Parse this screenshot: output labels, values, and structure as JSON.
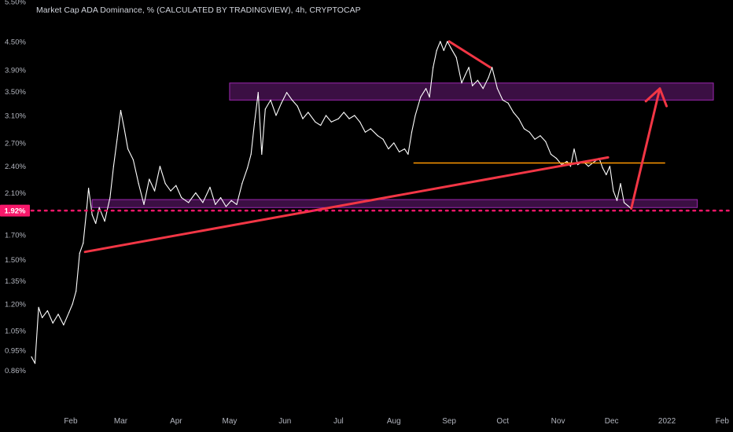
{
  "header": {
    "title": "Market Cap ADA Dominance, % (CALCULATED BY TRADINGVIEW), 4h, CRYPTOCAP"
  },
  "chart_data": {
    "type": "line",
    "title": "Market Cap ADA Dominance, % (CALCULATED BY TRADINGVIEW), 4h, CRYPTOCAP",
    "y_scale": "log",
    "ylim": [
      0.78,
      5.5
    ],
    "y_ticks": [
      {
        "value": 5.5,
        "label": "5.50%"
      },
      {
        "value": 4.5,
        "label": "4.50%"
      },
      {
        "value": 3.9,
        "label": "3.90%"
      },
      {
        "value": 3.5,
        "label": "3.50%"
      },
      {
        "value": 3.1,
        "label": "3.10%"
      },
      {
        "value": 2.7,
        "label": "2.70%"
      },
      {
        "value": 2.4,
        "label": "2.40%"
      },
      {
        "value": 2.1,
        "label": "2.10%"
      },
      {
        "value": 1.7,
        "label": "1.70%"
      },
      {
        "value": 1.5,
        "label": "1.50%"
      },
      {
        "value": 1.35,
        "label": "1.35%"
      },
      {
        "value": 1.2,
        "label": "1.20%"
      },
      {
        "value": 1.05,
        "label": "1.05%"
      },
      {
        "value": 0.95,
        "label": "0.95%"
      },
      {
        "value": 0.86,
        "label": "0.86%"
      }
    ],
    "x_ticks": [
      {
        "date": "2021-02-01",
        "label": "Feb"
      },
      {
        "date": "2021-03-01",
        "label": "Mar"
      },
      {
        "date": "2021-04-01",
        "label": "Apr"
      },
      {
        "date": "2021-05-01",
        "label": "May"
      },
      {
        "date": "2021-06-01",
        "label": "Jun"
      },
      {
        "date": "2021-07-01",
        "label": "Jul"
      },
      {
        "date": "2021-08-01",
        "label": "Aug"
      },
      {
        "date": "2021-09-01",
        "label": "Sep"
      },
      {
        "date": "2021-10-01",
        "label": "Oct"
      },
      {
        "date": "2021-11-01",
        "label": "Nov"
      },
      {
        "date": "2021-12-01",
        "label": "Dec"
      },
      {
        "date": "2022-01-01",
        "label": "2022"
      },
      {
        "date": "2022-02-01",
        "label": "Feb"
      }
    ],
    "xlim": [
      "2021-01-10",
      "2022-02-07"
    ],
    "series": [
      {
        "color": "#ffffff",
        "points": [
          [
            "2021-01-10",
            0.92
          ],
          [
            "2021-01-12",
            0.89
          ],
          [
            "2021-01-14",
            1.18
          ],
          [
            "2021-01-16",
            1.12
          ],
          [
            "2021-01-19",
            1.16
          ],
          [
            "2021-01-22",
            1.09
          ],
          [
            "2021-01-25",
            1.14
          ],
          [
            "2021-01-28",
            1.08
          ],
          [
            "2021-01-31",
            1.15
          ],
          [
            "2021-02-02",
            1.2
          ],
          [
            "2021-02-04",
            1.28
          ],
          [
            "2021-02-06",
            1.55
          ],
          [
            "2021-02-08",
            1.63
          ],
          [
            "2021-02-10",
            1.95
          ],
          [
            "2021-02-11",
            2.15
          ],
          [
            "2021-02-13",
            1.88
          ],
          [
            "2021-02-15",
            1.8
          ],
          [
            "2021-02-17",
            1.95
          ],
          [
            "2021-02-20",
            1.82
          ],
          [
            "2021-02-23",
            2.05
          ],
          [
            "2021-02-25",
            2.4
          ],
          [
            "2021-02-27",
            2.75
          ],
          [
            "2021-03-01",
            3.18
          ],
          [
            "2021-03-03",
            2.9
          ],
          [
            "2021-03-05",
            2.62
          ],
          [
            "2021-03-08",
            2.48
          ],
          [
            "2021-03-11",
            2.2
          ],
          [
            "2021-03-14",
            1.98
          ],
          [
            "2021-03-17",
            2.25
          ],
          [
            "2021-03-20",
            2.12
          ],
          [
            "2021-03-23",
            2.4
          ],
          [
            "2021-03-26",
            2.2
          ],
          [
            "2021-03-29",
            2.12
          ],
          [
            "2021-04-01",
            2.18
          ],
          [
            "2021-04-04",
            2.05
          ],
          [
            "2021-04-08",
            2.0
          ],
          [
            "2021-04-12",
            2.1
          ],
          [
            "2021-04-16",
            2.0
          ],
          [
            "2021-04-20",
            2.16
          ],
          [
            "2021-04-23",
            1.98
          ],
          [
            "2021-04-26",
            2.05
          ],
          [
            "2021-04-29",
            1.96
          ],
          [
            "2021-05-02",
            2.02
          ],
          [
            "2021-05-05",
            1.98
          ],
          [
            "2021-05-08",
            2.2
          ],
          [
            "2021-05-11",
            2.38
          ],
          [
            "2021-05-13",
            2.55
          ],
          [
            "2021-05-15",
            3.0
          ],
          [
            "2021-05-17",
            3.48
          ],
          [
            "2021-05-19",
            2.55
          ],
          [
            "2021-05-21",
            3.2
          ],
          [
            "2021-05-24",
            3.35
          ],
          [
            "2021-05-27",
            3.1
          ],
          [
            "2021-05-30",
            3.3
          ],
          [
            "2021-06-02",
            3.48
          ],
          [
            "2021-06-05",
            3.35
          ],
          [
            "2021-06-08",
            3.25
          ],
          [
            "2021-06-11",
            3.05
          ],
          [
            "2021-06-14",
            3.15
          ],
          [
            "2021-06-18",
            3.0
          ],
          [
            "2021-06-21",
            2.95
          ],
          [
            "2021-06-24",
            3.1
          ],
          [
            "2021-06-27",
            3.0
          ],
          [
            "2021-07-01",
            3.05
          ],
          [
            "2021-07-04",
            3.15
          ],
          [
            "2021-07-07",
            3.05
          ],
          [
            "2021-07-10",
            3.1
          ],
          [
            "2021-07-13",
            3.0
          ],
          [
            "2021-07-16",
            2.85
          ],
          [
            "2021-07-19",
            2.9
          ],
          [
            "2021-07-23",
            2.8
          ],
          [
            "2021-07-26",
            2.75
          ],
          [
            "2021-07-29",
            2.62
          ],
          [
            "2021-08-01",
            2.7
          ],
          [
            "2021-08-04",
            2.58
          ],
          [
            "2021-08-07",
            2.62
          ],
          [
            "2021-08-09",
            2.55
          ],
          [
            "2021-08-11",
            2.85
          ],
          [
            "2021-08-13",
            3.1
          ],
          [
            "2021-08-16",
            3.4
          ],
          [
            "2021-08-19",
            3.55
          ],
          [
            "2021-08-21",
            3.4
          ],
          [
            "2021-08-23",
            3.95
          ],
          [
            "2021-08-25",
            4.3
          ],
          [
            "2021-08-27",
            4.5
          ],
          [
            "2021-08-29",
            4.3
          ],
          [
            "2021-08-31",
            4.5
          ],
          [
            "2021-09-02",
            4.35
          ],
          [
            "2021-09-05",
            4.15
          ],
          [
            "2021-09-08",
            3.65
          ],
          [
            "2021-09-10",
            3.8
          ],
          [
            "2021-09-12",
            3.95
          ],
          [
            "2021-09-14",
            3.6
          ],
          [
            "2021-09-17",
            3.7
          ],
          [
            "2021-09-20",
            3.55
          ],
          [
            "2021-09-23",
            3.75
          ],
          [
            "2021-09-25",
            3.95
          ],
          [
            "2021-09-28",
            3.55
          ],
          [
            "2021-10-01",
            3.35
          ],
          [
            "2021-10-04",
            3.3
          ],
          [
            "2021-10-07",
            3.15
          ],
          [
            "2021-10-10",
            3.05
          ],
          [
            "2021-10-13",
            2.9
          ],
          [
            "2021-10-16",
            2.85
          ],
          [
            "2021-10-19",
            2.75
          ],
          [
            "2021-10-22",
            2.8
          ],
          [
            "2021-10-25",
            2.72
          ],
          [
            "2021-10-28",
            2.55
          ],
          [
            "2021-10-31",
            2.5
          ],
          [
            "2021-11-03",
            2.42
          ],
          [
            "2021-11-06",
            2.46
          ],
          [
            "2021-11-08",
            2.4
          ],
          [
            "2021-11-10",
            2.62
          ],
          [
            "2021-11-12",
            2.42
          ],
          [
            "2021-11-15",
            2.46
          ],
          [
            "2021-11-18",
            2.4
          ],
          [
            "2021-11-21",
            2.45
          ],
          [
            "2021-11-24",
            2.5
          ],
          [
            "2021-11-26",
            2.38
          ],
          [
            "2021-11-28",
            2.3
          ],
          [
            "2021-11-30",
            2.4
          ],
          [
            "2021-12-02",
            2.12
          ],
          [
            "2021-12-04",
            2.02
          ],
          [
            "2021-12-06",
            2.2
          ],
          [
            "2021-12-08",
            2.0
          ],
          [
            "2021-12-10",
            1.97
          ],
          [
            "2021-12-12",
            1.94
          ]
        ]
      }
    ],
    "zones": [
      {
        "from": "2021-05-01",
        "to": "2022-01-27",
        "y_low": 3.35,
        "y_high": 3.65,
        "color": "#9c27b0"
      },
      {
        "from": "2021-02-13",
        "to": "2022-01-18",
        "y_low": 1.95,
        "y_high": 2.03,
        "color": "#9c27b0"
      }
    ],
    "levels": [
      {
        "value": 2.44,
        "from": "2021-08-12",
        "to": "2021-12-31",
        "color": "#ff9800"
      }
    ],
    "drawn_lines": [
      {
        "from": [
          "2021-02-09",
          1.56
        ],
        "to": [
          "2021-11-29",
          2.51
        ],
        "color": "#f23645",
        "kind": "trendline"
      },
      {
        "from": [
          "2021-09-01",
          4.5
        ],
        "to": [
          "2021-09-24",
          3.95
        ],
        "color": "#f23645",
        "kind": "trendline"
      },
      {
        "from": [
          "2021-12-12",
          1.94
        ],
        "to": [
          "2021-12-28",
          3.55
        ],
        "color": "#f23645",
        "kind": "arrow"
      }
    ],
    "price_marker": {
      "value": 1.92,
      "label": "1.92%",
      "color": "#f7186a"
    }
  }
}
